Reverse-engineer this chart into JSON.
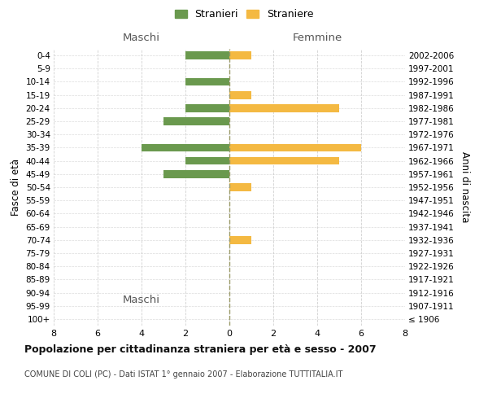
{
  "age_groups": [
    "100+",
    "95-99",
    "90-94",
    "85-89",
    "80-84",
    "75-79",
    "70-74",
    "65-69",
    "60-64",
    "55-59",
    "50-54",
    "45-49",
    "40-44",
    "35-39",
    "30-34",
    "25-29",
    "20-24",
    "15-19",
    "10-14",
    "5-9",
    "0-4"
  ],
  "birth_years": [
    "≤ 1906",
    "1907-1911",
    "1912-1916",
    "1917-1921",
    "1922-1926",
    "1927-1931",
    "1932-1936",
    "1937-1941",
    "1942-1946",
    "1947-1951",
    "1952-1956",
    "1957-1961",
    "1962-1966",
    "1967-1971",
    "1972-1976",
    "1977-1981",
    "1982-1986",
    "1987-1991",
    "1992-1996",
    "1997-2001",
    "2002-2006"
  ],
  "maschi": [
    0,
    0,
    0,
    0,
    0,
    0,
    0,
    0,
    0,
    0,
    0,
    3,
    2,
    4,
    0,
    3,
    2,
    0,
    2,
    0,
    2
  ],
  "femmine": [
    0,
    0,
    0,
    0,
    0,
    0,
    1,
    0,
    0,
    0,
    1,
    0,
    5,
    6,
    0,
    0,
    5,
    1,
    0,
    0,
    1
  ],
  "color_maschi": "#6a994e",
  "color_femmine": "#f4b942",
  "title": "Popolazione per cittadinanza straniera per età e sesso - 2007",
  "subtitle": "COMUNE DI COLI (PC) - Dati ISTAT 1° gennaio 2007 - Elaborazione TUTTITALIA.IT",
  "xlabel_left": "Maschi",
  "xlabel_right": "Femmine",
  "ylabel_left": "Fasce di età",
  "ylabel_right": "Anni di nascita",
  "legend_maschi": "Stranieri",
  "legend_femmine": "Straniere",
  "xlim": 8,
  "background_color": "#ffffff",
  "grid_color": "#cccccc"
}
